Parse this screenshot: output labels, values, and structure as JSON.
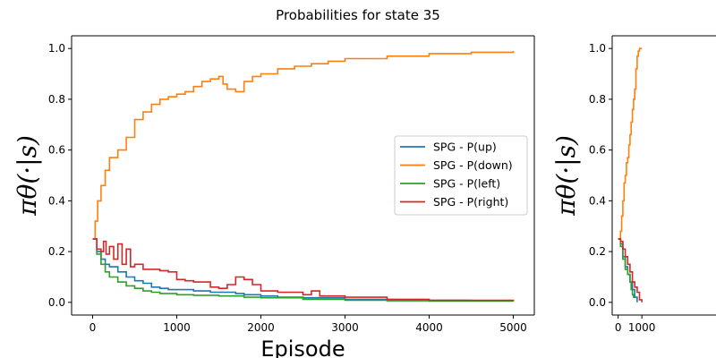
{
  "figure": {
    "title": "Probabilities for state 35"
  },
  "chart_data": [
    {
      "type": "line",
      "title": "",
      "xlabel": "Episode",
      "ylabel": "πθ(·|s)",
      "xlim": [
        -250,
        5250
      ],
      "ylim": [
        -0.05,
        1.05
      ],
      "xticks": [
        0,
        1000,
        2000,
        3000,
        4000,
        5000
      ],
      "yticks": [
        0.0,
        0.2,
        0.4,
        0.6,
        0.8,
        1.0
      ],
      "grid": false,
      "legend_position": "center-right",
      "series": [
        {
          "name": "SPG - P(up)",
          "color": "#1f77b4",
          "x": [
            0,
            50,
            100,
            150,
            200,
            300,
            400,
            500,
            600,
            700,
            800,
            900,
            1000,
            1200,
            1400,
            1500,
            1700,
            1800,
            2000,
            2200,
            2500,
            3000,
            3500,
            4000,
            4500,
            5000
          ],
          "y": [
            0.25,
            0.2,
            0.17,
            0.15,
            0.14,
            0.12,
            0.1,
            0.085,
            0.075,
            0.06,
            0.055,
            0.05,
            0.05,
            0.045,
            0.04,
            0.04,
            0.035,
            0.03,
            0.025,
            0.02,
            0.018,
            0.012,
            0.01,
            0.008,
            0.006,
            0.005
          ]
        },
        {
          "name": "SPG - P(down)",
          "color": "#ff7f0e",
          "x": [
            0,
            30,
            60,
            100,
            150,
            200,
            300,
            400,
            500,
            600,
            700,
            800,
            900,
            1000,
            1100,
            1200,
            1300,
            1400,
            1500,
            1550,
            1600,
            1700,
            1800,
            1900,
            2000,
            2200,
            2400,
            2600,
            2800,
            3000,
            3500,
            4000,
            4500,
            5000
          ],
          "y": [
            0.25,
            0.32,
            0.4,
            0.46,
            0.52,
            0.57,
            0.6,
            0.65,
            0.72,
            0.75,
            0.78,
            0.8,
            0.81,
            0.82,
            0.83,
            0.85,
            0.87,
            0.88,
            0.89,
            0.86,
            0.84,
            0.83,
            0.87,
            0.89,
            0.9,
            0.92,
            0.93,
            0.94,
            0.95,
            0.96,
            0.97,
            0.98,
            0.985,
            0.99
          ]
        },
        {
          "name": "SPG - P(left)",
          "color": "#2ca02c",
          "x": [
            0,
            50,
            100,
            150,
            200,
            300,
            400,
            500,
            600,
            700,
            800,
            1000,
            1200,
            1500,
            1800,
            2000,
            2500,
            3000,
            3500,
            4000,
            5000
          ],
          "y": [
            0.25,
            0.19,
            0.15,
            0.12,
            0.1,
            0.08,
            0.065,
            0.055,
            0.045,
            0.04,
            0.035,
            0.03,
            0.028,
            0.025,
            0.02,
            0.018,
            0.012,
            0.008,
            0.006,
            0.005,
            0.004
          ]
        },
        {
          "name": "SPG - P(right)",
          "color": "#d62728",
          "x": [
            0,
            50,
            100,
            130,
            160,
            200,
            250,
            300,
            350,
            400,
            450,
            500,
            600,
            700,
            800,
            900,
            1000,
            1100,
            1200,
            1400,
            1500,
            1600,
            1700,
            1800,
            1900,
            2000,
            2200,
            2500,
            2600,
            2700,
            3000,
            3500,
            4000,
            5000
          ],
          "y": [
            0.25,
            0.21,
            0.2,
            0.24,
            0.19,
            0.22,
            0.17,
            0.23,
            0.15,
            0.21,
            0.14,
            0.15,
            0.13,
            0.13,
            0.125,
            0.12,
            0.09,
            0.085,
            0.08,
            0.06,
            0.055,
            0.07,
            0.1,
            0.09,
            0.07,
            0.045,
            0.04,
            0.03,
            0.045,
            0.025,
            0.02,
            0.012,
            0.008,
            0.005
          ]
        }
      ]
    },
    {
      "type": "line",
      "title": "",
      "xlabel": "",
      "ylabel": "πθ(·|s)",
      "xlim": [
        -250,
        5250
      ],
      "ylim": [
        -0.05,
        1.05
      ],
      "xticks": [
        0,
        1000
      ],
      "yticks": [
        0.0,
        0.2,
        0.4,
        0.6,
        0.8,
        1.0
      ],
      "grid": false,
      "series": [
        {
          "color": "#1f77b4",
          "x": [
            0,
            100,
            200,
            300,
            400,
            500,
            600,
            700,
            800
          ],
          "y": [
            0.25,
            0.23,
            0.18,
            0.14,
            0.11,
            0.08,
            0.05,
            0.02,
            0.0
          ]
        },
        {
          "color": "#ff7f0e",
          "x": [
            0,
            100,
            150,
            200,
            250,
            300,
            350,
            400,
            450,
            500,
            550,
            600,
            650,
            700,
            750,
            800,
            850,
            900,
            1000
          ],
          "y": [
            0.25,
            0.28,
            0.34,
            0.4,
            0.47,
            0.5,
            0.55,
            0.57,
            0.62,
            0.66,
            0.71,
            0.76,
            0.8,
            0.84,
            0.92,
            0.97,
            0.99,
            1.0,
            1.0
          ]
        },
        {
          "color": "#2ca02c",
          "x": [
            0,
            100,
            200,
            300,
            400,
            500,
            550,
            600,
            650,
            700
          ],
          "y": [
            0.25,
            0.22,
            0.17,
            0.13,
            0.11,
            0.08,
            0.05,
            0.03,
            0.02,
            0.02
          ]
        },
        {
          "color": "#d62728",
          "x": [
            0,
            100,
            200,
            300,
            400,
            500,
            600,
            700,
            800,
            900,
            1000
          ],
          "y": [
            0.25,
            0.24,
            0.21,
            0.18,
            0.15,
            0.12,
            0.08,
            0.06,
            0.04,
            0.01,
            0.0
          ]
        }
      ]
    }
  ]
}
